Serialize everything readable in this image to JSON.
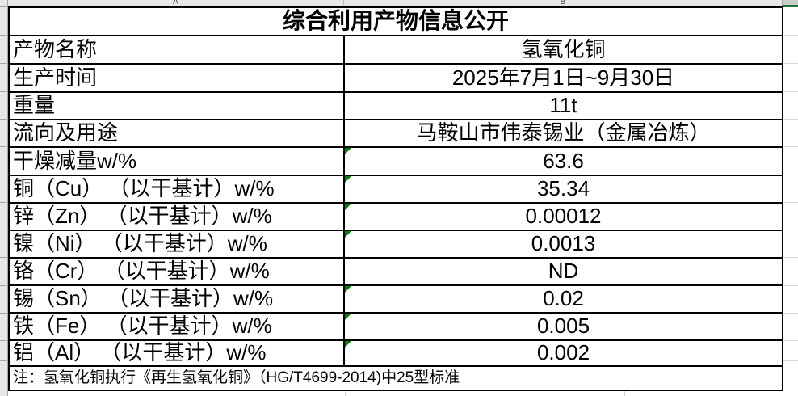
{
  "sheet": {
    "col_headers": [
      "A",
      "B"
    ],
    "title": "综合利用产物信息公开",
    "rows": [
      {
        "label": "产物名称",
        "value": "氢氧化铜",
        "flag": false
      },
      {
        "label": "生产时间",
        "value": "2025年7月1日~9月30日",
        "flag": false
      },
      {
        "label": "重量",
        "value": "11t",
        "flag": false
      },
      {
        "label": "流向及用途",
        "value": "马鞍山市伟泰锡业（金属冶炼）",
        "flag": false
      },
      {
        "label": "干燥减量w/%",
        "value": "63.6",
        "flag": true
      },
      {
        "label": "铜（Cu） （以干基计）w/%",
        "value": "35.34",
        "flag": true
      },
      {
        "label": "锌（Zn） （以干基计）w/%",
        "value": "0.00012",
        "flag": true
      },
      {
        "label": "镍（Ni） （以干基计）w/%",
        "value": "0.0013",
        "flag": true
      },
      {
        "label": "铬（Cr） （以干基计）w/%",
        "value": "ND",
        "flag": false
      },
      {
        "label": "锡（Sn） （以干基计）w/%",
        "value": "0.02",
        "flag": true
      },
      {
        "label": "铁（Fe） （以干基计）w/%",
        "value": "0.005",
        "flag": true
      },
      {
        "label": "铝（Al） （以干基计）w/%",
        "value": "0.002",
        "flag": true
      }
    ],
    "note": "注：氢氧化铜执行《再生氢氧化铜》（HG/T4699-2014)中25型标准",
    "colors": {
      "flag_green": "#0e7a0e",
      "selection_green": "#217346"
    }
  }
}
